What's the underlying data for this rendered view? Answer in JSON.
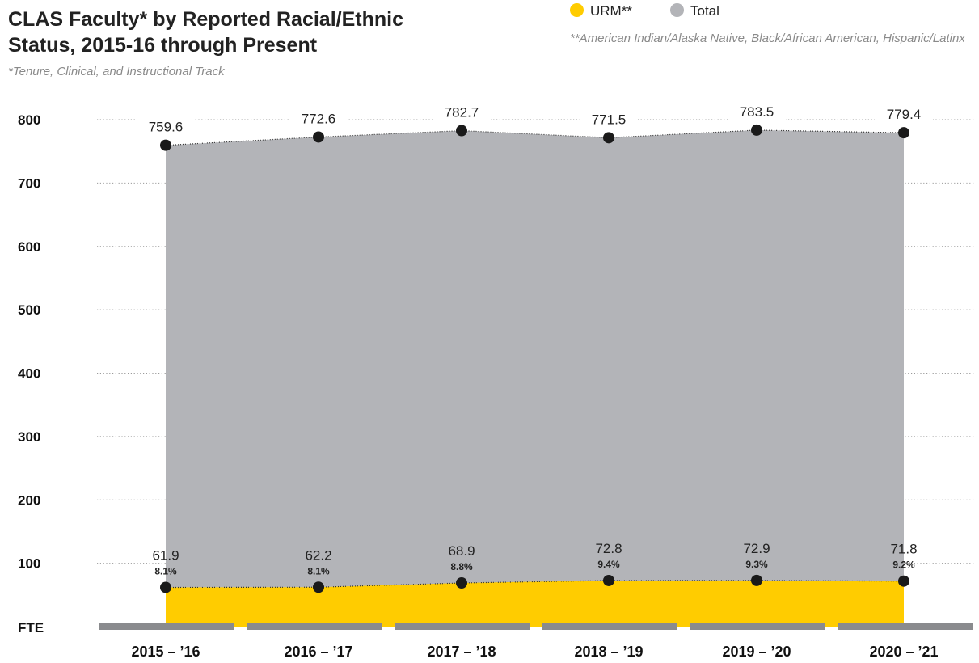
{
  "title": "CLAS Faculty* by Reported Racial/Ethnic Status, 2015-16 through Present",
  "subtitle": "*Tenure, Clinical, and Instructional Track",
  "legend": {
    "items": [
      {
        "label": "URM**",
        "color": "#ffcc00"
      },
      {
        "label": "Total",
        "color": "#b3b4b8"
      }
    ],
    "note": "**American Indian/Alaska Native, Black/African American, Hispanic/Latinx"
  },
  "chart_data": {
    "type": "area",
    "title": "CLAS Faculty* by Reported Racial/Ethnic Status, 2015-16 through Present",
    "ylabel": "FTE",
    "xlabel": "",
    "ylim": [
      0,
      800
    ],
    "yticks": [
      "100",
      "200",
      "300",
      "400",
      "500",
      "600",
      "700",
      "800"
    ],
    "grid": true,
    "legend_position": "top-right",
    "categories": [
      "2015 – ’16",
      "2016 – ’17",
      "2017 – ’18",
      "2018 – ’19",
      "2019 – ’20",
      "2020 – ’21"
    ],
    "series": [
      {
        "name": "Total",
        "color": "#b3b4b8",
        "values": [
          759.6,
          772.6,
          782.7,
          771.5,
          783.5,
          779.4
        ],
        "labels": [
          "759.6",
          "772.6",
          "782.7",
          "771.5",
          "783.5",
          "779.4"
        ]
      },
      {
        "name": "URM**",
        "color": "#ffcc00",
        "values": [
          61.9,
          62.2,
          68.9,
          72.8,
          72.9,
          71.8
        ],
        "labels": [
          "61.9",
          "62.2",
          "68.9",
          "72.8",
          "72.9",
          "71.8"
        ],
        "percent_labels": [
          "8.1%",
          "8.1%",
          "8.8%",
          "9.4%",
          "9.3%",
          "9.2%"
        ]
      }
    ]
  }
}
